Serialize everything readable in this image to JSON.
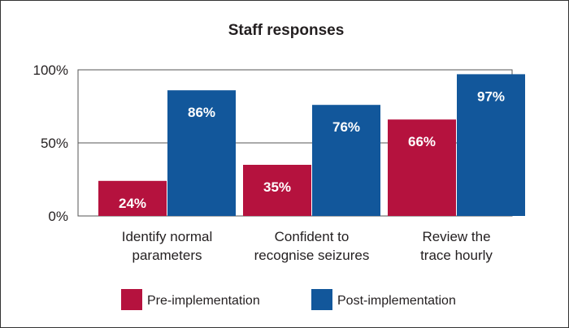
{
  "chart_data": {
    "type": "bar",
    "title": "Staff responses",
    "categories": [
      [
        "Identify normal",
        "parameters"
      ],
      [
        "Confident to",
        "recognise seizures"
      ],
      [
        "Review the",
        "trace hourly"
      ]
    ],
    "series": [
      {
        "name": "Pre-implementation",
        "values": [
          24,
          35,
          66
        ],
        "labels": [
          "24%",
          "35%",
          "66%"
        ],
        "color": "#b5123e"
      },
      {
        "name": "Post-implementation",
        "values": [
          86,
          76,
          97
        ],
        "labels": [
          "86%",
          "76%",
          "97%"
        ],
        "color": "#12579b"
      }
    ],
    "ylim": [
      0,
      100
    ],
    "yticks": [
      0,
      50,
      100
    ],
    "ytick_labels": [
      "0%",
      "50%",
      "100%"
    ],
    "grid": true,
    "legend_position": "bottom"
  }
}
